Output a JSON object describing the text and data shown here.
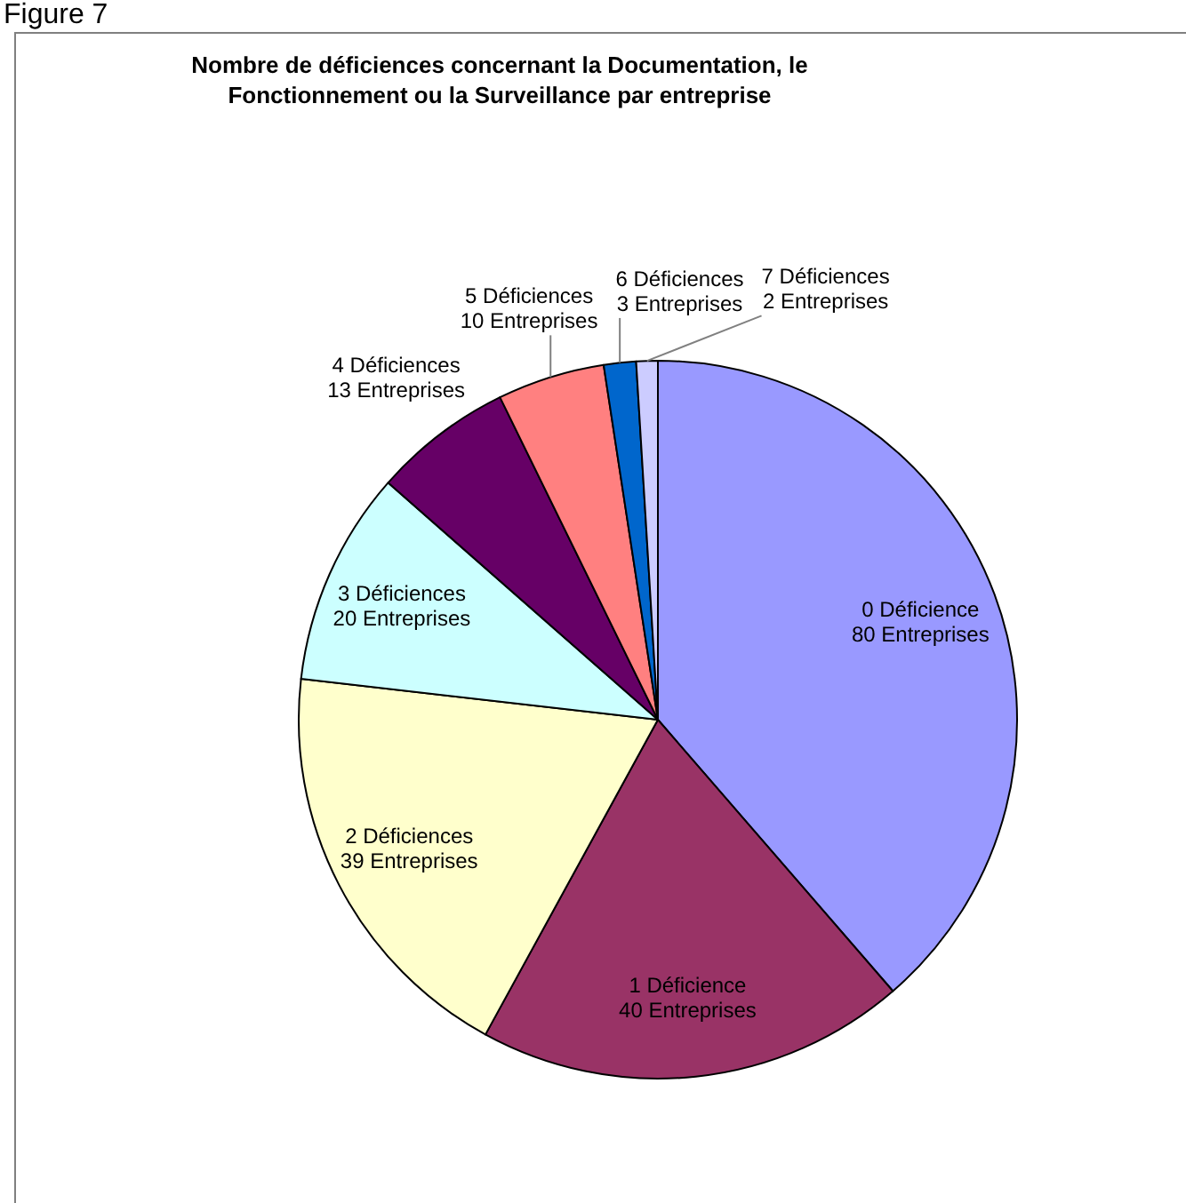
{
  "chart_data": {
    "type": "pie",
    "title": "Nombre de déficiences concernant la Documentation, le Fonctionnement ou la Surveillance par entreprise",
    "categories": [
      "0 Déficience",
      "1 Déficience",
      "2 Déficiences",
      "3 Déficiences",
      "4 Déficiences",
      "5 Déficiences",
      "6 Déficiences",
      "7 Déficiences"
    ],
    "values": [
      80,
      40,
      39,
      20,
      13,
      10,
      3,
      2
    ],
    "value_labels": [
      "80 Entreprises",
      "40 Entreprises",
      "39 Entreprises",
      "20 Entreprises",
      "13 Entreprises",
      "10 Entreprises",
      "3 Entreprises",
      "2 Entreprises"
    ],
    "colors": [
      "#9999ff",
      "#993366",
      "#ffffcc",
      "#ccffff",
      "#660066",
      "#ff8080",
      "#0066cc",
      "#ccccff"
    ],
    "annotations": [
      "Figure 7"
    ]
  }
}
